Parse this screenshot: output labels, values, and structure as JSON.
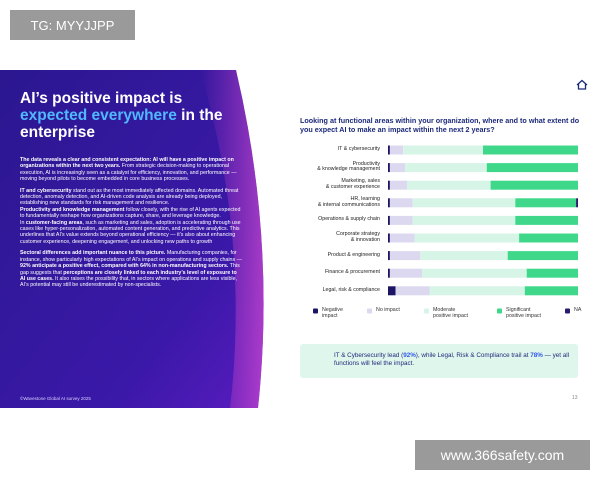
{
  "watermark_top": "TG: MYYJJPP",
  "watermark_bottom": "www.366safety.com",
  "left_panel": {
    "title_runs": [
      {
        "text": "AI’s positive impact is ",
        "bold": false
      },
      {
        "text": "expected everywhere",
        "bold": true
      },
      {
        "text": " in the enterprise",
        "bold": false
      }
    ],
    "paragraphs": [
      [
        {
          "text": "The data reveals a clear and consistent expectation: AI will have a positive impact on organizations within the next two years.",
          "bold": true
        },
        {
          "text": " From strategic decision-making to operational execution, AI is increasingly seen as a catalyst for efficiency, innovation, and performance — moving beyond pilots to become embedded in core business processes.",
          "bold": false
        }
      ],
      [
        {
          "text": "IT and cybersecurity",
          "bold": true
        },
        {
          "text": " stand out as the most immediately affected domains. Automated threat detection, anomaly detection, and AI-driven code analysis are already being deployed, establishing new standards for risk management and resilience.",
          "bold": false
        }
      ],
      [
        {
          "text": "Productivity and knowledge management",
          "bold": true
        },
        {
          "text": " follow closely, with the rise of AI agents expected to fundamentally reshape how organizations capture, share, and leverage knowledge.",
          "bold": false
        }
      ],
      [
        {
          "text": "In ",
          "bold": false
        },
        {
          "text": "customer-facing areas",
          "bold": true
        },
        {
          "text": ", such as marketing and sales, adoption is accelerating through use cases like hyper-personalization, automated content generation, and predictive analytics. This underlines that AI’s value extends beyond operational efficiency — it’s also about enhancing customer experience, deepening engagement, and unlocking new paths to growth",
          "bold": false
        }
      ],
      [
        {
          "text": "Sectoral differences add important nuance to this picture.",
          "bold": true
        },
        {
          "text": " Manufacturing companies, for instance, show particularly high expectations of AI’s impact on operations and supply chains — ",
          "bold": false
        },
        {
          "text": "92% anticipate a positive effect, compared with 64% in non-manufacturing sectors.",
          "bold": true
        },
        {
          "text": " This gap suggests that ",
          "bold": false
        },
        {
          "text": "perceptions are closely linked to each industry’s level of exposure to AI use cases.",
          "bold": true
        },
        {
          "text": " It also raises the possibility that, in sectors where applications are less visible, AI’s potential may still be underestimated by non-specialists.",
          "bold": false
        }
      ]
    ],
    "footer": "©Wavestone Global AI survey 2025"
  },
  "chart_data": {
    "type": "stacked-bar-horizontal",
    "title": "Looking at functional areas within your organization, where and to what extent do you expect AI to make an impact within the next 2 years?",
    "categories": [
      "IT & cybersecurity",
      "Productivity\n& knowledge management",
      "Marketing, sales\n& customer experience",
      "HR, learning\n& internal communications",
      "Operations & supply chain",
      "Corporate strategy\n& innovation",
      "Product & engineering",
      "Finance & procurement",
      "Legal, risk & compliance"
    ],
    "xlim": [
      0,
      100
    ],
    "series": [
      {
        "name": "Negative\nimpact",
        "color": "#1c1464",
        "values": [
          1,
          1,
          1,
          1,
          1,
          1,
          1,
          1,
          4
        ]
      },
      {
        "name": "No impact",
        "color": "#dcd8ef",
        "values": [
          7,
          8,
          9,
          12,
          12,
          13,
          16,
          17,
          18
        ]
      },
      {
        "name": "Moderate\npositive impact",
        "color": "#d6f5e6",
        "values": [
          42,
          43,
          44,
          54,
          54,
          55,
          46,
          55,
          50
        ]
      },
      {
        "name": "Significant\npositive impact",
        "color": "#3fd88a",
        "values": [
          50,
          48,
          46,
          32,
          33,
          31,
          37,
          27,
          28
        ]
      },
      {
        "name": "NA",
        "color": "#2a1a6e",
        "values": [
          0,
          0,
          0,
          1,
          0,
          0,
          0,
          0,
          0
        ]
      }
    ]
  },
  "callout_runs": [
    {
      "text": "IT & Cybersecurity lead (",
      "bold": false
    },
    {
      "text": "92%",
      "bold": true
    },
    {
      "text": "), while Legal, Risk & Compliance trail at ",
      "bold": false
    },
    {
      "text": "78%",
      "bold": true
    },
    {
      "text": " — yet all functions will feel the impact.",
      "bold": false
    }
  ],
  "page_number": "13"
}
